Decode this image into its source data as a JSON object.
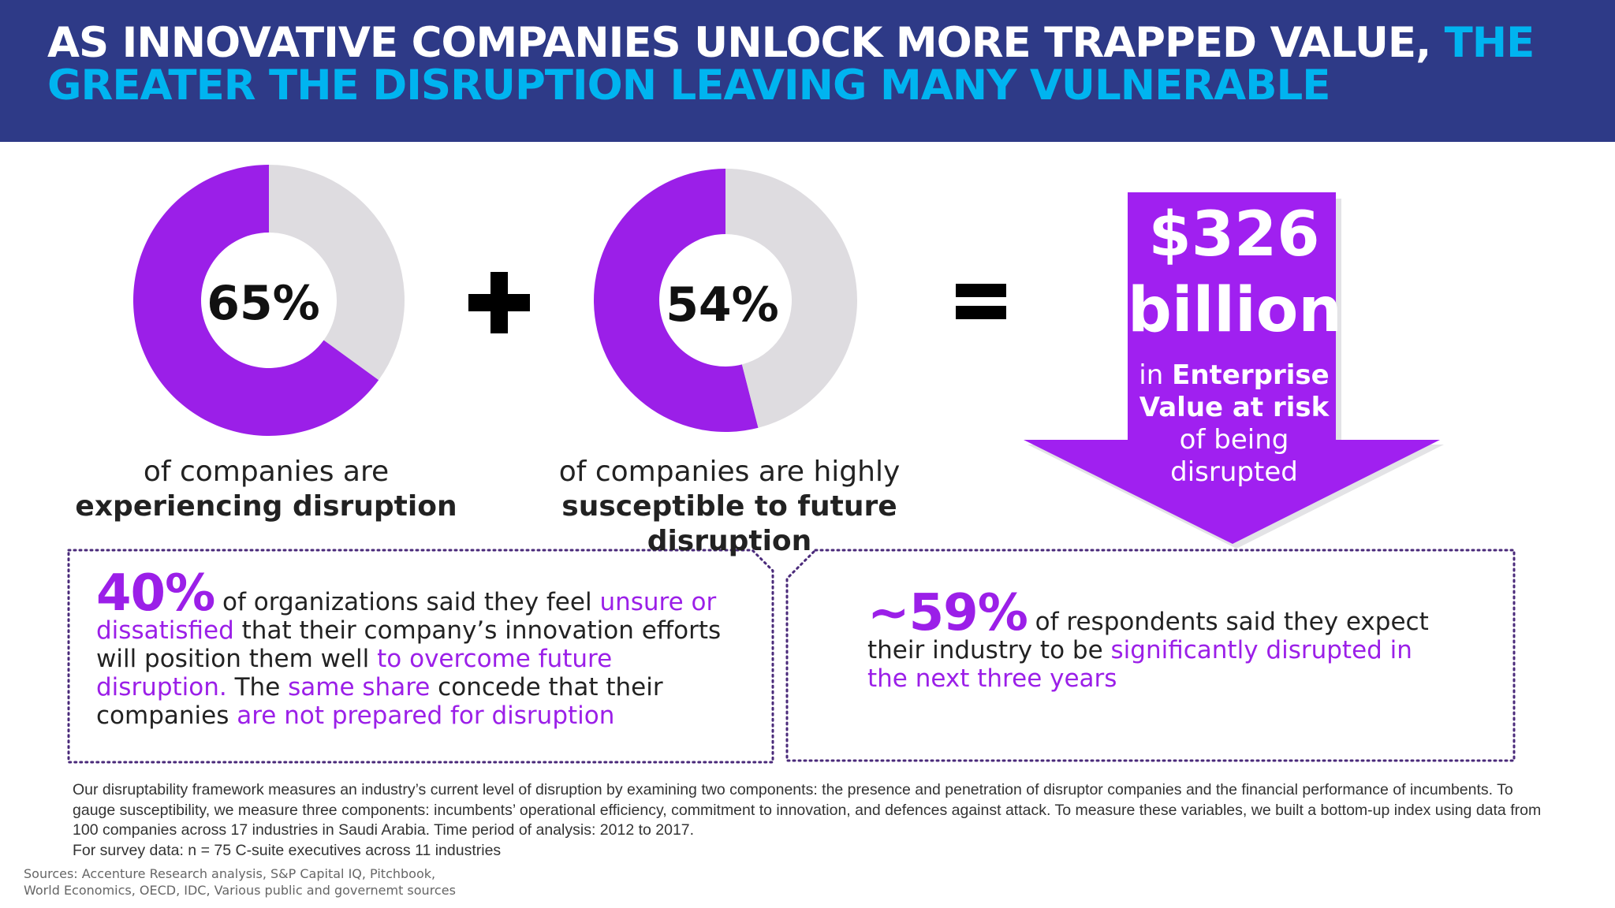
{
  "header": {
    "title_white": "AS INNOVATIVE COMPANIES UNLOCK  MORE TRAPPED VALUE, ",
    "title_highlight": "THE GREATER THE DISRUPTION LEAVING MANY VULNERABLE"
  },
  "colors": {
    "header_bg": "#2e3a87",
    "highlight": "#00b4f0",
    "purple": "#9b1fe8",
    "gray": "#dedce0"
  },
  "chart_data": [
    {
      "type": "pie",
      "values": [
        65,
        35
      ],
      "label": "65%",
      "caption_line1": "of companies are",
      "caption_line2": "experiencing disruption"
    },
    {
      "type": "pie",
      "values": [
        54,
        46
      ],
      "label": "54%",
      "caption_line1": "of companies are highly",
      "caption_line2": "susceptible to future disruption"
    }
  ],
  "result": {
    "amount": "$326",
    "unit": "billion",
    "line1_pre": "in ",
    "line1_bold": "Enterprise",
    "line2_bold": "Value at risk",
    "line3": "of being",
    "line4": "disrupted"
  },
  "box_left": {
    "stat": "40%",
    "t1": " of organizations said they feel ",
    "p1": "unsure or dissatisfied",
    "t2": " that their company’s innovation efforts will position them well ",
    "p2": "to overcome future disruption.",
    "t3": " The ",
    "p3": "same share",
    "t4": " concede that their companies ",
    "p4": "are not prepared for disruption"
  },
  "box_right": {
    "stat": "~59%",
    "t1": " of respondents said they expect their industry to be ",
    "p1": "significantly disrupted in the next three years"
  },
  "methodology": {
    "text": "Our disruptability framework measures an industry’s current level of disruption by examining two components: the presence and penetration of disruptor companies and the financial performance of incumbents. To gauge susceptibility, we measure three components: incumbents’ operational efficiency, commitment to innovation, and defences against attack. To measure these variables, we built a bottom-up index using data from 100 companies across 17 industries in Saudi Arabia. Time period of analysis: 2012 to 2017.",
    "survey": "For survey data: n = 75 C-suite executives across 11 industries"
  },
  "sources": {
    "line1": "Sources: Accenture Research analysis, S&P Capital IQ, Pitchbook,",
    "line2": "World Economics, OECD, IDC, Various public and governemt sources"
  }
}
